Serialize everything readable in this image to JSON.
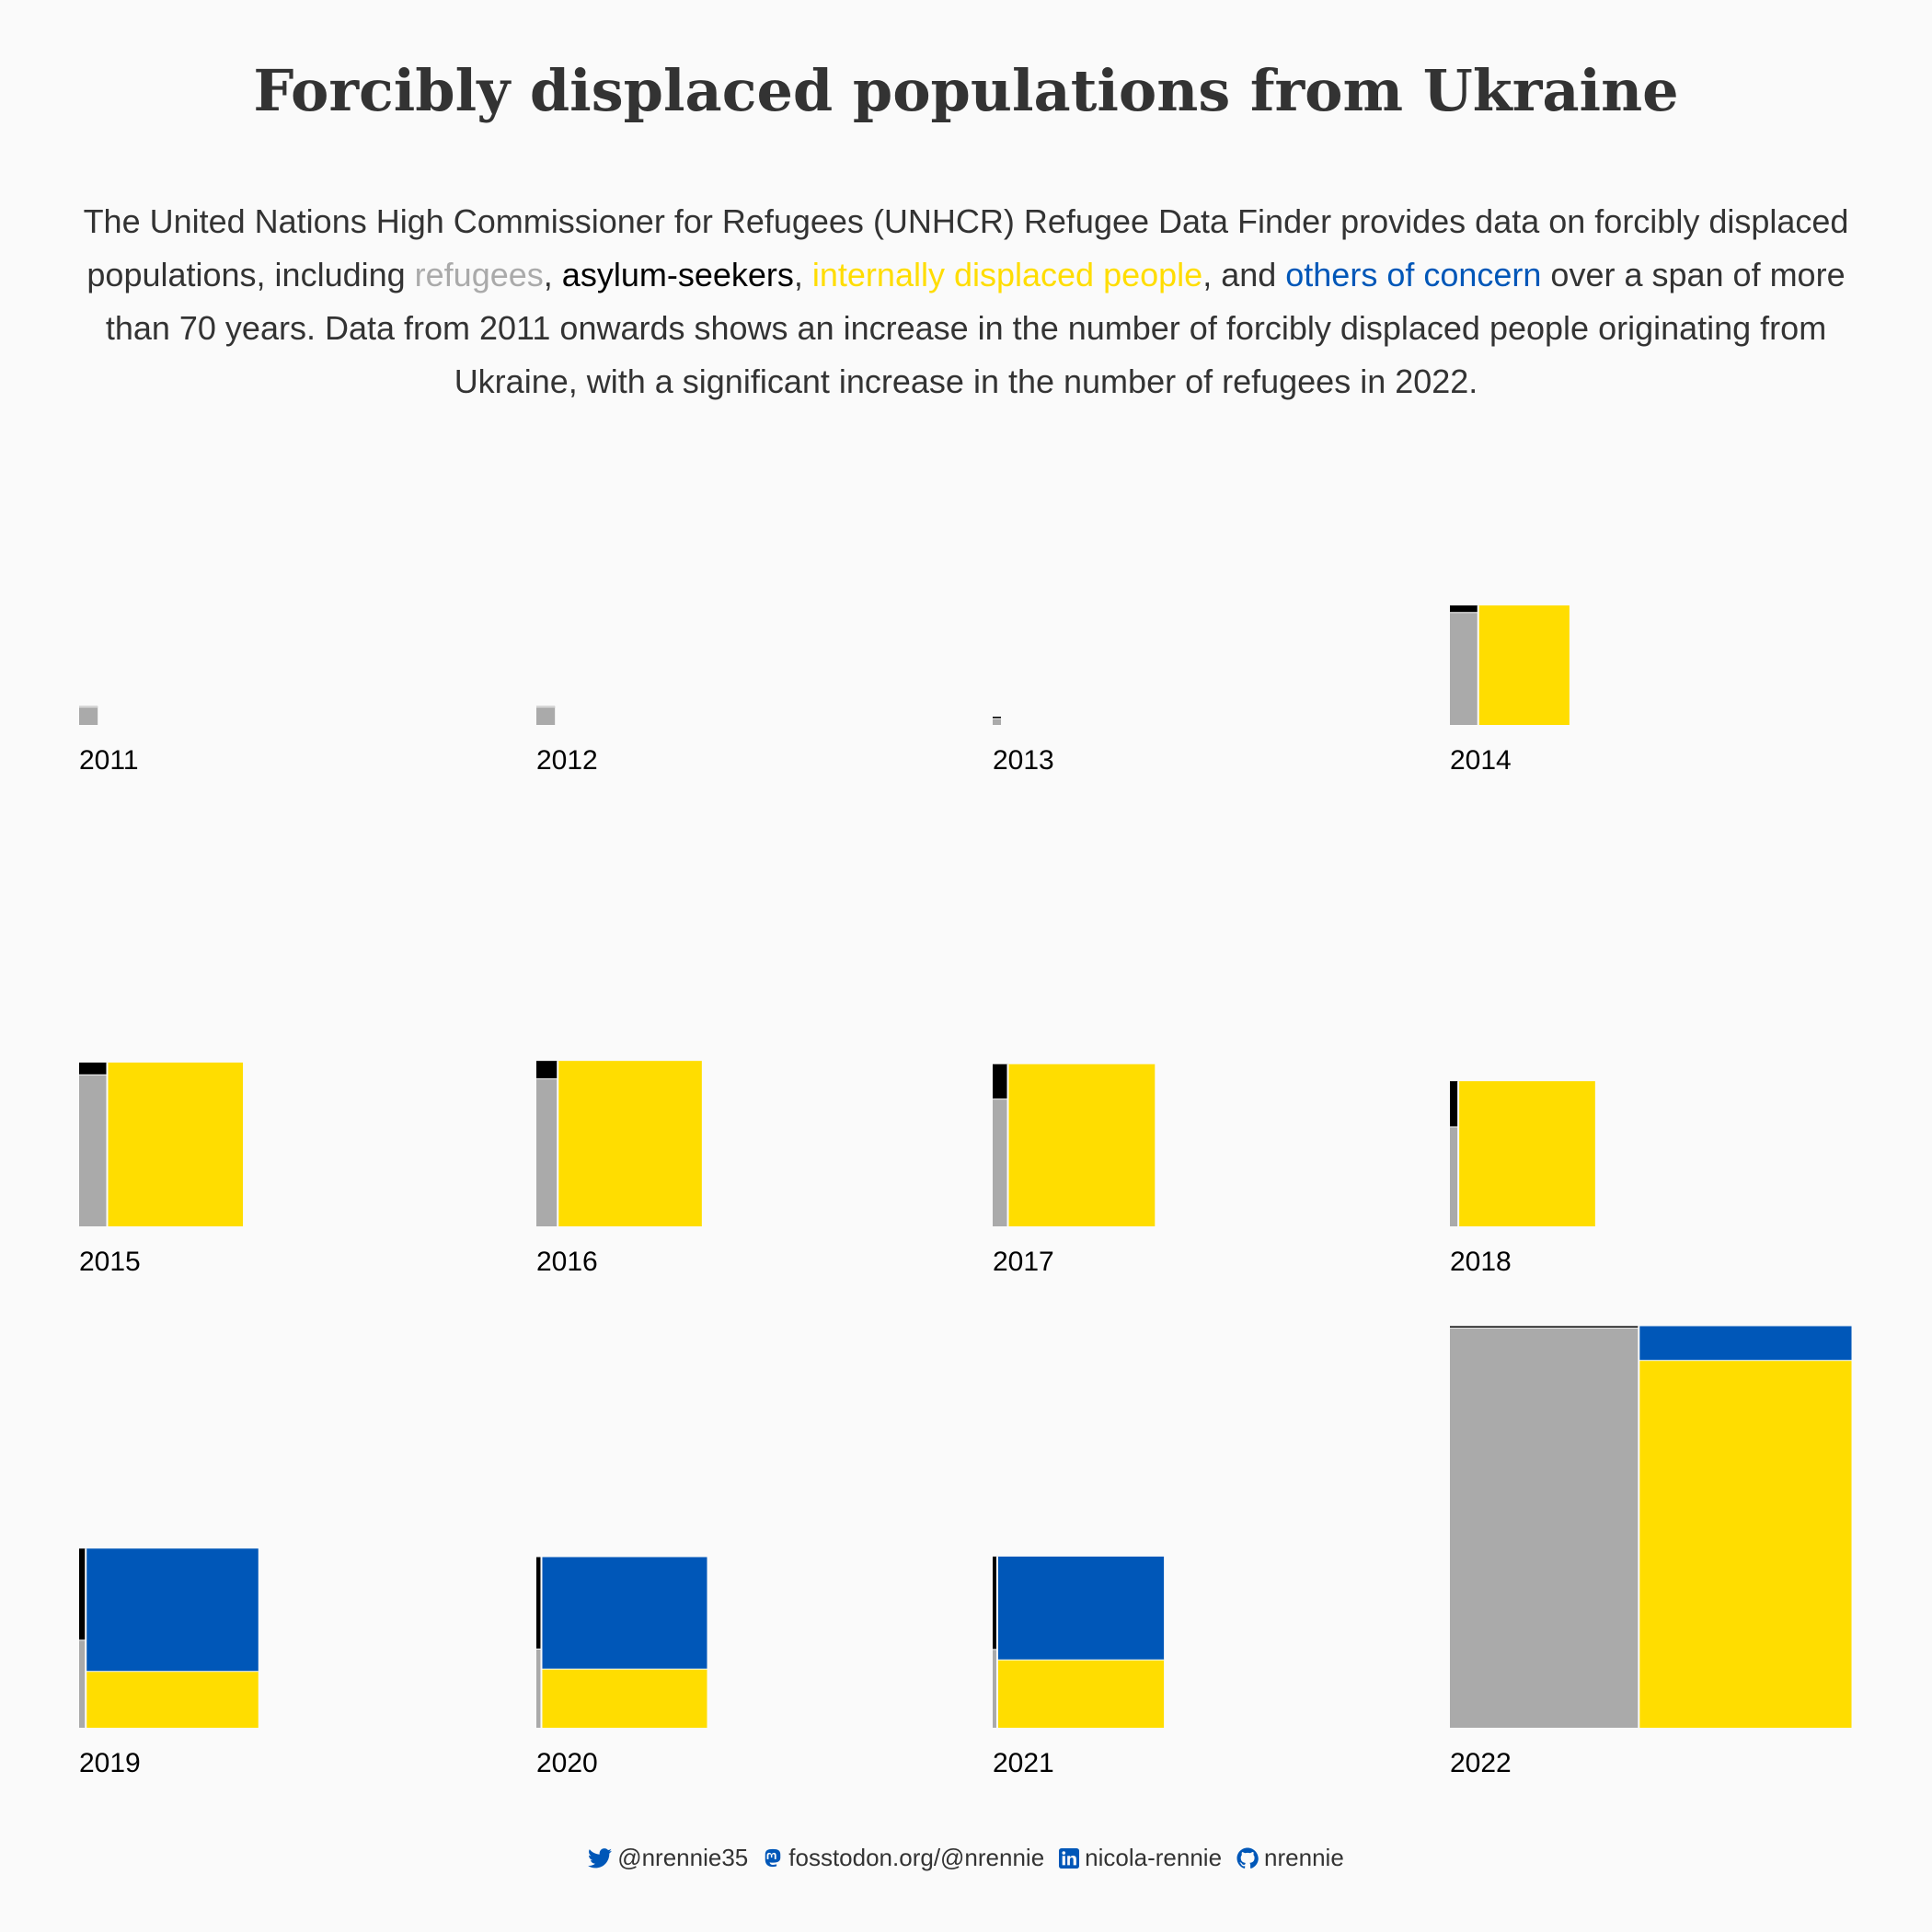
{
  "title": "Forcibly displaced populations from Ukraine",
  "subtitle": {
    "part1": "The United Nations High Commissioner for Refugees (UNHCR) Refugee Data Finder provides data on forcibly displaced populations, including ",
    "refugees": "refugees",
    "sep1": ", ",
    "asylum": "asylum-seekers",
    "sep2": ", ",
    "idp": "internally displaced people",
    "sep3": ", and ",
    "ooc": "others of concern",
    "part2": " over a span of more than 70 years. Data from 2011 onwards shows an increase in the number of forcibly displaced people originating from Ukraine, with a significant increase in the number of refugees in 2022."
  },
  "colors": {
    "refugees": "#aaaaaa",
    "asylum_seekers": "#000000",
    "idp": "#ffdd00",
    "others_of_concern": "#0057b8",
    "separator": "#fafafa"
  },
  "chart_data": {
    "type": "treemap",
    "unit": "people (estimated from area)",
    "categories": [
      "refugees",
      "asylum-seekers",
      "internally displaced people",
      "others of concern"
    ],
    "panels": [
      {
        "year": "2011",
        "refugees": 25000,
        "asylum_seekers": 1000,
        "idp": 0,
        "others_of_concern": 0
      },
      {
        "year": "2012",
        "refugees": 25000,
        "asylum_seekers": 1000,
        "idp": 0,
        "others_of_concern": 0
      },
      {
        "year": "2013",
        "refugees": 4000,
        "asylum_seekers": 1200,
        "idp": 0,
        "others_of_concern": 0
      },
      {
        "year": "2014",
        "refugees": 240000,
        "asylum_seekers": 15000,
        "idp": 823000,
        "others_of_concern": 0
      },
      {
        "year": "2015",
        "refugees": 321000,
        "asylum_seekers": 26000,
        "idp": 1679000,
        "others_of_concern": 0
      },
      {
        "year": "2016",
        "refugees": 238000,
        "asylum_seekers": 29000,
        "idp": 1800000,
        "others_of_concern": 0
      },
      {
        "year": "2017",
        "refugees": 146000,
        "asylum_seekers": 40000,
        "idp": 1800000,
        "others_of_concern": 0
      },
      {
        "year": "2018",
        "refugees": 63000,
        "asylum_seekers": 29000,
        "idp": 1500000,
        "others_of_concern": 0
      },
      {
        "year": "2019",
        "refugees": 44000,
        "asylum_seekers": 46000,
        "idp": 734000,
        "others_of_concern": 1600000
      },
      {
        "year": "2020",
        "refugees": 30000,
        "asylum_seekers": 35000,
        "idp": 734000,
        "others_of_concern": 1400000
      },
      {
        "year": "2021",
        "refugees": 27000,
        "asylum_seekers": 32000,
        "idp": 854000,
        "others_of_concern": 1300000
      },
      {
        "year": "2022",
        "refugees": 5700000,
        "asylum_seekers": 27000,
        "idp": 5900000,
        "others_of_concern": 550000
      }
    ]
  },
  "footer": {
    "twitter": "@nrennie35",
    "mastodon": "fosstodon.org/@nrennie",
    "linkedin": "nicola-rennie",
    "github": "nrennie"
  }
}
